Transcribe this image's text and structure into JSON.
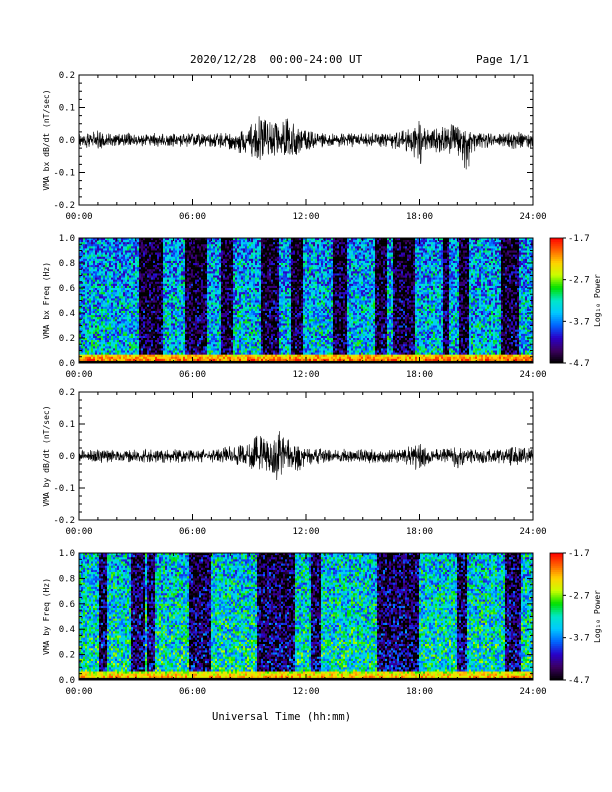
{
  "header": {
    "title": "2020/12/28  00:00-24:00 UT",
    "page": "Page 1/1"
  },
  "xlabel": "Universal Time (hh:mm)",
  "x_ticks": [
    "00:00",
    "06:00",
    "12:00",
    "18:00",
    "24:00"
  ],
  "colors": {
    "trace": "#000000",
    "colorbar": [
      "#000000",
      "#3c0060",
      "#2a00c8",
      "#0064ff",
      "#00c8ff",
      "#00e6c8",
      "#00e000",
      "#c8ff00",
      "#ffd200",
      "#ff6400",
      "#ff0000"
    ]
  },
  "chart_data": [
    {
      "type": "line",
      "ylabel": "VMA bx dB/dt (nT/sec)",
      "ylim": [
        -0.2,
        0.2
      ],
      "y_ticks": [
        "0.2",
        "0.1",
        "0.0",
        "-0.1",
        "-0.2"
      ],
      "x_unit": "hours UT",
      "series": [
        {
          "x": [
            0,
            1,
            2,
            3,
            4,
            5,
            6,
            7,
            8,
            9,
            9.5,
            10,
            10.5,
            11,
            11.5,
            12,
            13,
            14,
            15,
            16,
            17,
            17.5,
            18,
            18.5,
            19,
            20,
            20.5,
            21,
            22,
            23,
            24
          ],
          "amp_upper": [
            0.02,
            0.03,
            0.02,
            0.02,
            0.02,
            0.02,
            0.02,
            0.02,
            0.02,
            0.04,
            0.08,
            0.06,
            0.05,
            0.07,
            0.04,
            0.03,
            0.02,
            0.02,
            0.02,
            0.02,
            0.03,
            0.04,
            0.08,
            0.03,
            0.04,
            0.05,
            0.03,
            0.02,
            0.02,
            0.03,
            0.02
          ],
          "amp_lower": [
            -0.02,
            -0.03,
            -0.02,
            -0.02,
            -0.02,
            -0.02,
            -0.02,
            -0.02,
            -0.03,
            -0.05,
            -0.06,
            -0.06,
            -0.04,
            -0.05,
            -0.05,
            -0.03,
            -0.02,
            -0.02,
            -0.02,
            -0.02,
            -0.04,
            -0.03,
            -0.09,
            -0.03,
            -0.04,
            -0.05,
            -0.11,
            -0.03,
            -0.02,
            -0.03,
            -0.02
          ]
        }
      ]
    },
    {
      "type": "heatmap",
      "ylabel": "VMA bx Freq (Hz)",
      "ylim": [
        0,
        1.0
      ],
      "y_ticks": [
        "1.0",
        "0.8",
        "0.6",
        "0.4",
        "0.2",
        "0.0"
      ],
      "colorbar_label": "Log₁₀ Power",
      "colorbar_ticks": [
        "-1.7",
        "-2.7",
        "-3.7",
        "-4.7"
      ],
      "zlim": [
        -4.7,
        -1.7
      ],
      "background_power": -3.4,
      "low_freq_power": -2.0,
      "dark_bands_hours": [
        [
          3.2,
          4.4
        ],
        [
          5.6,
          6.8
        ],
        [
          7.5,
          8.1
        ],
        [
          9.6,
          10.6
        ],
        [
          11.2,
          11.8
        ],
        [
          13.4,
          14.2
        ],
        [
          15.6,
          16.3
        ],
        [
          16.6,
          17.8
        ],
        [
          19.2,
          19.6
        ],
        [
          20.1,
          20.6
        ],
        [
          22.3,
          23.3
        ]
      ]
    },
    {
      "type": "line",
      "ylabel": "VMA by dB/dt (nT/sec)",
      "ylim": [
        -0.2,
        0.2
      ],
      "y_ticks": [
        "0.2",
        "0.1",
        "0.0",
        "-0.1",
        "-0.2"
      ],
      "x_unit": "hours UT",
      "series": [
        {
          "x": [
            0,
            1,
            2,
            3,
            4,
            5,
            6,
            7,
            8,
            9,
            9.5,
            10,
            10.5,
            11,
            11.5,
            12,
            13,
            14,
            15,
            16,
            17,
            17.5,
            18,
            18.5,
            19,
            20,
            20.5,
            21,
            22,
            23,
            24
          ],
          "amp_upper": [
            0.02,
            0.02,
            0.02,
            0.02,
            0.02,
            0.02,
            0.02,
            0.02,
            0.03,
            0.04,
            0.07,
            0.05,
            0.08,
            0.06,
            0.03,
            0.03,
            0.02,
            0.02,
            0.02,
            0.02,
            0.02,
            0.03,
            0.04,
            0.02,
            0.02,
            0.03,
            0.02,
            0.02,
            0.02,
            0.03,
            0.02
          ],
          "amp_lower": [
            -0.02,
            -0.02,
            -0.02,
            -0.02,
            -0.02,
            -0.02,
            -0.02,
            -0.02,
            -0.02,
            -0.04,
            -0.04,
            -0.05,
            -0.08,
            -0.04,
            -0.06,
            -0.03,
            -0.02,
            -0.02,
            -0.02,
            -0.02,
            -0.02,
            -0.03,
            -0.05,
            -0.02,
            -0.02,
            -0.04,
            -0.02,
            -0.02,
            -0.02,
            -0.03,
            -0.02
          ]
        }
      ]
    },
    {
      "type": "heatmap",
      "ylabel": "VMA by Freq (Hz)",
      "ylim": [
        0,
        1.0
      ],
      "y_ticks": [
        "1.0",
        "0.8",
        "0.6",
        "0.4",
        "0.2",
        "0.0"
      ],
      "colorbar_label": "Log₁₀ Power",
      "colorbar_ticks": [
        "-1.7",
        "-2.7",
        "-3.7",
        "-4.7"
      ],
      "zlim": [
        -4.7,
        -1.7
      ],
      "background_power": -3.2,
      "low_freq_power": -2.2,
      "dark_bands_hours": [
        [
          1.1,
          1.5
        ],
        [
          2.8,
          3.5
        ],
        [
          3.6,
          4.0
        ],
        [
          5.8,
          7.0
        ],
        [
          9.4,
          11.4
        ],
        [
          12.3,
          12.8
        ],
        [
          15.8,
          18.0
        ],
        [
          20.0,
          20.5
        ],
        [
          22.5,
          23.4
        ]
      ]
    }
  ]
}
